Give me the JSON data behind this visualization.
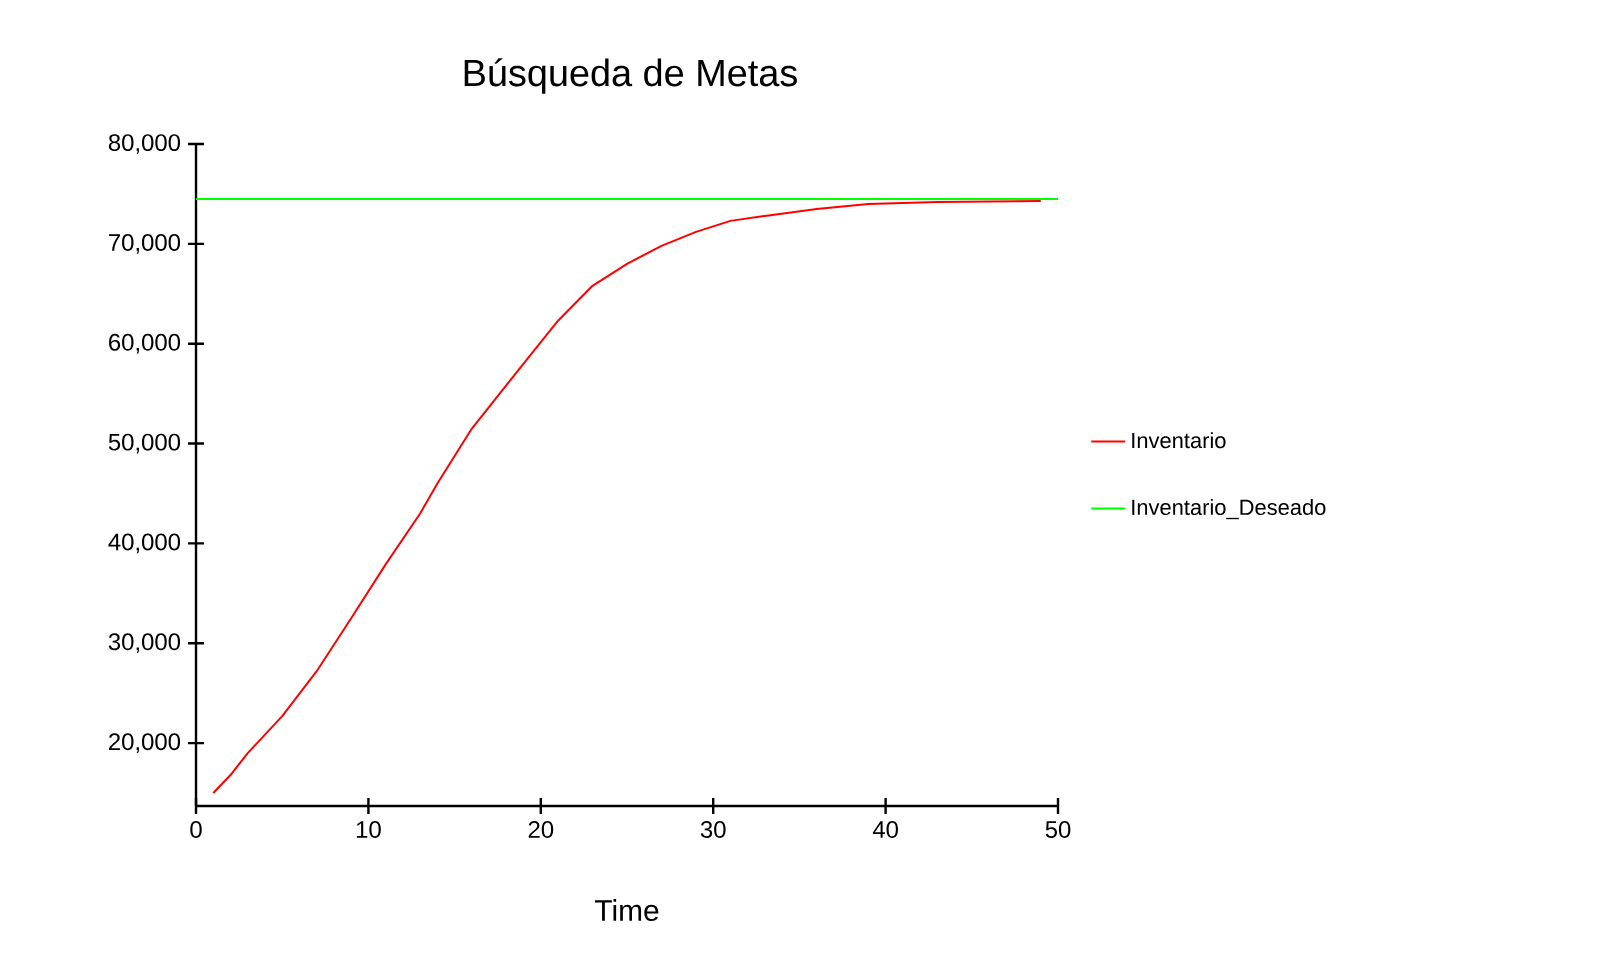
{
  "chart_data": {
    "type": "line",
    "title": "Búsqueda de Metas",
    "xlabel": "Time",
    "xlim": [
      0,
      50
    ],
    "xticks": [
      0,
      10,
      20,
      30,
      40,
      50
    ],
    "ylim": [
      13700,
      80000
    ],
    "yticks": [
      {
        "value": 20000,
        "label": "20,000"
      },
      {
        "value": 30000,
        "label": "30,000"
      },
      {
        "value": 40000,
        "label": "40,000"
      },
      {
        "value": 50000,
        "label": "50,000"
      },
      {
        "value": 60000,
        "label": "60,000"
      },
      {
        "value": 70000,
        "label": "70,000"
      },
      {
        "value": 80000,
        "label": "80,000"
      }
    ],
    "legend": "right",
    "marker": "none",
    "line_style": "solid",
    "series": [
      {
        "name": "Inventario",
        "color": "#ff0000",
        "x": [
          1,
          2,
          3,
          5,
          7,
          9,
          11,
          13,
          14,
          16,
          19,
          21,
          23,
          25,
          27,
          29,
          31,
          33,
          36,
          39,
          43,
          49
        ],
        "values": [
          15000,
          16800,
          19000,
          22700,
          27200,
          32500,
          37900,
          43000,
          46000,
          51500,
          58000,
          62300,
          65800,
          68000,
          69800,
          71200,
          72300,
          72800,
          73500,
          74000,
          74200,
          74300
        ]
      },
      {
        "name": "Inventario_Deseado",
        "color": "#00ff00",
        "x": [
          0,
          50
        ],
        "values": [
          74500,
          74500
        ]
      }
    ]
  }
}
